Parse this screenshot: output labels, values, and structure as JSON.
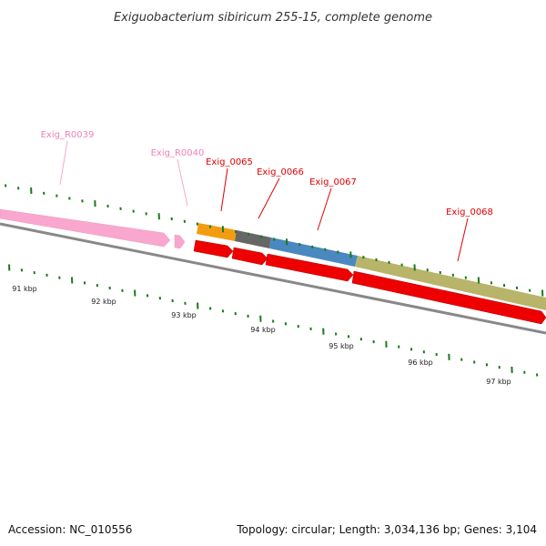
{
  "title": "Exiguobacterium sibiricum 255-15, complete genome",
  "footer": {
    "accession": "Accession: NC_010556",
    "summary": "Topology: circular; Length: 3,034,136 bp; Genes: 3,104"
  },
  "colors": {
    "rna": "#f9a7cf",
    "rna_label": "#f080b8",
    "cds": "#ee0000",
    "cds_label": "#dd0000",
    "backbone": "#888888",
    "ticks": "#1a7a1a",
    "cog_orange": "#f39c12",
    "cog_gray": "#666666",
    "cog_blue": "#4a88c0",
    "cog_olive": "#b8b46a"
  },
  "genes": [
    {
      "id": "rna-39",
      "label": "Exig_R0039",
      "type": "rna"
    },
    {
      "id": "rna-40",
      "label": "Exig_R0040",
      "type": "rna"
    },
    {
      "id": "cds-65",
      "label": "Exig_0065",
      "type": "cds"
    },
    {
      "id": "cds-66",
      "label": "Exig_0066",
      "type": "cds"
    },
    {
      "id": "cds-67",
      "label": "Exig_0067",
      "type": "cds"
    },
    {
      "id": "cds-68",
      "label": "Exig_0068",
      "type": "cds"
    }
  ],
  "scale_labels": [
    "91 kbp",
    "92 kbp",
    "93 kbp",
    "94 kbp",
    "95 kbp",
    "96 kbp",
    "97 kbp"
  ]
}
